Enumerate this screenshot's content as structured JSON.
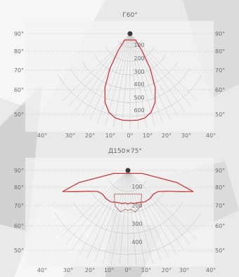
{
  "colors": {
    "background": "#e9e9e9",
    "panel": "#f3f3f3",
    "grid": "#bdbdbd",
    "curve": "#c83a3a",
    "curve_secondary": "#b07070",
    "text": "#6f6f6f",
    "shapes_light": "#fafafa",
    "shapes_mid": "#cfcfcf",
    "shapes_dark": "#bcbcbc"
  },
  "chart_data": [
    {
      "type": "polar-intensity",
      "title": "Г60°",
      "left_axis_labels": [
        "90°",
        "80°",
        "70°",
        "60°",
        "50°"
      ],
      "right_axis_labels": [
        "90°",
        "80°",
        "70°",
        "60°",
        "50°"
      ],
      "bottom_axis_labels": [
        "40°",
        "30°",
        "20°",
        "10°",
        "0°",
        "10°",
        "20°",
        "30°",
        "40°"
      ],
      "radial_labels": [
        "100",
        "200",
        "300",
        "400",
        "500",
        "600"
      ],
      "radial_max": 600,
      "series": [
        {
          "angles_deg": [
            -40,
            -35,
            -30,
            -25,
            -20,
            -15,
            -10,
            -5,
            0,
            5,
            10,
            15,
            20,
            25,
            30,
            35,
            40
          ],
          "values": [
            60,
            150,
            290,
            430,
            530,
            590,
            620,
            630,
            630,
            630,
            620,
            590,
            530,
            430,
            290,
            150,
            60
          ]
        }
      ]
    },
    {
      "type": "polar-intensity",
      "title": "Д150×75°",
      "left_axis_labels": [
        "90°",
        "80°",
        "70°",
        "60°",
        "50°"
      ],
      "right_axis_labels": [
        "90°",
        "80°",
        "70°",
        "60°",
        "50°"
      ],
      "bottom_axis_labels": [
        "40°",
        "30°",
        "20°",
        "10°",
        "0°",
        "10°",
        "20°",
        "30°",
        "40°"
      ],
      "radial_labels": [
        "100",
        "200",
        "300",
        "400"
      ],
      "radial_max": 400,
      "series": [
        {
          "angles_deg": [
            -78,
            -76,
            -72,
            -68,
            -62,
            -55,
            -47,
            -38,
            -28,
            -18,
            -10,
            -4,
            0,
            4,
            10,
            18,
            28,
            38,
            47,
            55,
            62,
            68,
            72,
            76,
            78
          ],
          "values": [
            70,
            240,
            325,
            270,
            210,
            175,
            165,
            170,
            170,
            160,
            160,
            155,
            160,
            155,
            160,
            160,
            170,
            170,
            165,
            175,
            210,
            270,
            325,
            240,
            70
          ]
        },
        {
          "angles_deg": [
            -30,
            -20,
            -10,
            -4,
            0,
            4,
            10,
            20,
            30
          ],
          "values": [
            130,
            180,
            200,
            185,
            190,
            185,
            200,
            180,
            130
          ]
        }
      ]
    }
  ]
}
